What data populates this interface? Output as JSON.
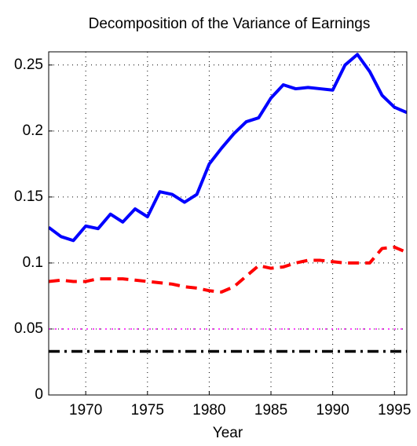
{
  "chart_data": {
    "type": "line",
    "title": "Decomposition of the Variance of Earnings",
    "xlabel": "Year",
    "x": [
      1967,
      1968,
      1969,
      1970,
      1971,
      1972,
      1973,
      1974,
      1975,
      1976,
      1977,
      1978,
      1979,
      1980,
      1981,
      1982,
      1983,
      1984,
      1985,
      1986,
      1987,
      1988,
      1989,
      1990,
      1991,
      1992,
      1993,
      1994,
      1995,
      1996
    ],
    "series": [
      {
        "color": "#0000ff",
        "style": "solid",
        "linewidth": 4,
        "values": [
          0.127,
          0.12,
          0.117,
          0.128,
          0.126,
          0.137,
          0.131,
          0.141,
          0.135,
          0.154,
          0.152,
          0.146,
          0.152,
          0.175,
          0.187,
          0.198,
          0.207,
          0.21,
          0.225,
          0.235,
          0.232,
          0.233,
          0.232,
          0.231,
          0.25,
          0.258,
          0.245,
          0.227,
          0.218,
          0.214
        ]
      },
      {
        "color": "#ff0000",
        "style": "dashed",
        "linewidth": 4,
        "values": [
          0.086,
          0.087,
          0.086,
          0.086,
          0.088,
          0.088,
          0.088,
          0.087,
          0.086,
          0.085,
          0.084,
          0.082,
          0.081,
          0.079,
          0.078,
          0.082,
          0.09,
          0.098,
          0.096,
          0.097,
          0.1,
          0.102,
          0.102,
          0.101,
          0.1,
          0.1,
          0.1,
          0.111,
          0.112,
          0.108
        ]
      },
      {
        "color": "#ff00ff",
        "style": "dotted",
        "linewidth": 1.5,
        "values": [
          0.05,
          0.05,
          0.05,
          0.05,
          0.05,
          0.05,
          0.05,
          0.05,
          0.05,
          0.05,
          0.05,
          0.05,
          0.05,
          0.05,
          0.05,
          0.05,
          0.05,
          0.05,
          0.05,
          0.05,
          0.05,
          0.05,
          0.05,
          0.05,
          0.05,
          0.05,
          0.05,
          0.05,
          0.05,
          0.05
        ]
      },
      {
        "color": "#000000",
        "style": "dashdot",
        "linewidth": 3.5,
        "values": [
          0.033,
          0.033,
          0.033,
          0.033,
          0.033,
          0.033,
          0.033,
          0.033,
          0.033,
          0.033,
          0.033,
          0.033,
          0.033,
          0.033,
          0.033,
          0.033,
          0.033,
          0.033,
          0.033,
          0.033,
          0.033,
          0.033,
          0.033,
          0.033,
          0.033,
          0.033,
          0.033,
          0.033,
          0.033,
          0.033
        ]
      }
    ],
    "xlim": [
      1967,
      1996
    ],
    "ylim": [
      0,
      0.26
    ],
    "xticks": [
      1970,
      1975,
      1980,
      1985,
      1990,
      1995
    ],
    "yticks": [
      0,
      0.05,
      0.1,
      0.15,
      0.2,
      0.25
    ],
    "grid": true
  }
}
